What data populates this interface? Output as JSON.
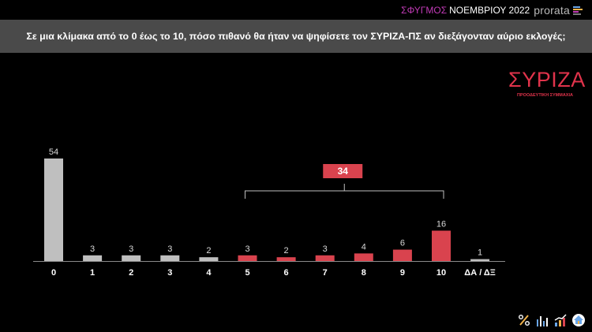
{
  "header": {
    "brand_pulse": "ΣΦΥΓΜΟΣ",
    "brand_month": "ΝΟΕΜΒΡΙΟΥ 2022",
    "brand_name": "prorata"
  },
  "question": "Σε μια κλίμακα από το 0 έως το 10, πόσο πιθανό θα ήταν να ψηφίσετε τον ΣΥΡΙΖΑ-ΠΣ αν διεξάγονταν αύριο εκλογές;",
  "logo": {
    "word": "ΣΥΡΙΖΑ",
    "subtitle": "ΠΡΟΟΔΕΥΤΙΚΗ ΣΥΜΜΑΧΙΑ"
  },
  "chart_data": {
    "type": "bar",
    "categories": [
      "0",
      "1",
      "2",
      "3",
      "4",
      "5",
      "6",
      "7",
      "8",
      "9",
      "10",
      "ΔΑ / ΔΞ"
    ],
    "values": [
      54,
      3,
      3,
      3,
      2,
      3,
      2,
      3,
      4,
      6,
      16,
      1
    ],
    "bar_colors": [
      "#bfbfbf",
      "#bfbfbf",
      "#bfbfbf",
      "#bfbfbf",
      "#bfbfbf",
      "#d9434e",
      "#d9434e",
      "#d9434e",
      "#d9434e",
      "#d9434e",
      "#d9434e",
      "#bfbfbf"
    ],
    "bracket": {
      "from_category": "5",
      "to_category": "10",
      "label": "34",
      "color": "#d9434e"
    },
    "ylim": [
      0,
      54
    ],
    "title": "",
    "xlabel": "",
    "ylabel": "",
    "grid": false
  },
  "footer_icons": [
    "percent-icon",
    "bar-chart-icon",
    "growth-chart-icon",
    "house-icon"
  ],
  "colors": {
    "background": "#000000",
    "question_bar": "#4a4a4a",
    "accent_red": "#d9434e",
    "neutral_bar": "#bfbfbf",
    "pulse_purple": "#c23bb7"
  }
}
